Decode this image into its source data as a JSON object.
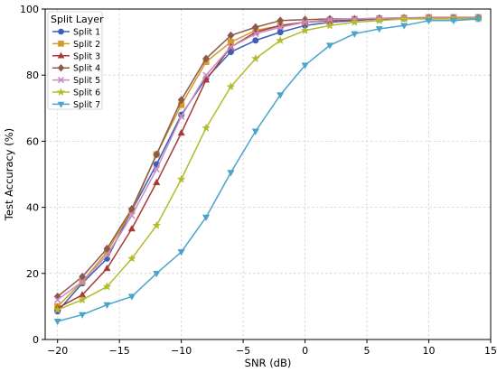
{
  "chart_data": {
    "type": "line",
    "xlabel": "SNR (dB)",
    "ylabel": "Test Accuracy (%)",
    "xlim": [
      -21,
      15
    ],
    "ylim": [
      0,
      100
    ],
    "xticks": [
      -20,
      -15,
      -10,
      -5,
      0,
      5,
      10,
      15
    ],
    "yticks": [
      0,
      20,
      40,
      60,
      80,
      100
    ],
    "grid": true,
    "legend": {
      "title": "Split Layer",
      "placement": "top-left"
    },
    "x": [
      -20,
      -18,
      -16,
      -14,
      -12,
      -10,
      -8,
      -6,
      -4,
      -2,
      0,
      2,
      4,
      6,
      8,
      10,
      12,
      14
    ],
    "series": [
      {
        "name": "Split 1",
        "color": "#3a60b6",
        "marker": "circle",
        "values": [
          8.5,
          17,
          24.5,
          39,
          53,
          68,
          79,
          87,
          90.5,
          93,
          95,
          96,
          96.5,
          97,
          97.2,
          97.3,
          97.3,
          97.3
        ]
      },
      {
        "name": "Split 2",
        "color": "#d39a2a",
        "marker": "square",
        "values": [
          10,
          17.5,
          26.5,
          39,
          56,
          71,
          84,
          90,
          93.5,
          95,
          96,
          96.5,
          96.8,
          97,
          97.3,
          97.5,
          97.5,
          97.5
        ]
      },
      {
        "name": "Split 3",
        "color": "#a83a35",
        "marker": "triangle-up",
        "values": [
          9.5,
          13.5,
          21.5,
          33.5,
          47.5,
          62.5,
          78.5,
          88.5,
          93,
          95,
          96,
          96.5,
          96.8,
          97,
          97.2,
          97.3,
          97.3,
          97.3
        ]
      },
      {
        "name": "Split 4",
        "color": "#8b5a4a",
        "marker": "diamond",
        "values": [
          13,
          19,
          27.5,
          39.5,
          56,
          72.5,
          85,
          92,
          94.5,
          96.5,
          96.8,
          97,
          97,
          97.2,
          97.3,
          97.3,
          97.3,
          97.3
        ]
      },
      {
        "name": "Split 5",
        "color": "#c98bc4",
        "marker": "x",
        "values": [
          12,
          17.5,
          25.5,
          37.5,
          51.5,
          67.5,
          80,
          88.5,
          92.5,
          94.5,
          96,
          96.8,
          97,
          97.2,
          97.3,
          97.3,
          97.3,
          97.3
        ]
      },
      {
        "name": "Split 6",
        "color": "#b2bb2c",
        "marker": "star",
        "values": [
          9,
          12,
          16,
          24.5,
          34.5,
          48.5,
          64,
          76.5,
          85,
          90.5,
          93.5,
          95,
          96,
          96.5,
          97,
          97,
          97,
          97
        ]
      },
      {
        "name": "Split 7",
        "color": "#4aa4cc",
        "marker": "triangle-down",
        "values": [
          5.5,
          7.5,
          10.5,
          13,
          20,
          26.5,
          37,
          50.5,
          63,
          74,
          83,
          89,
          92.5,
          94,
          95,
          96.5,
          96.5,
          97
        ]
      }
    ]
  }
}
